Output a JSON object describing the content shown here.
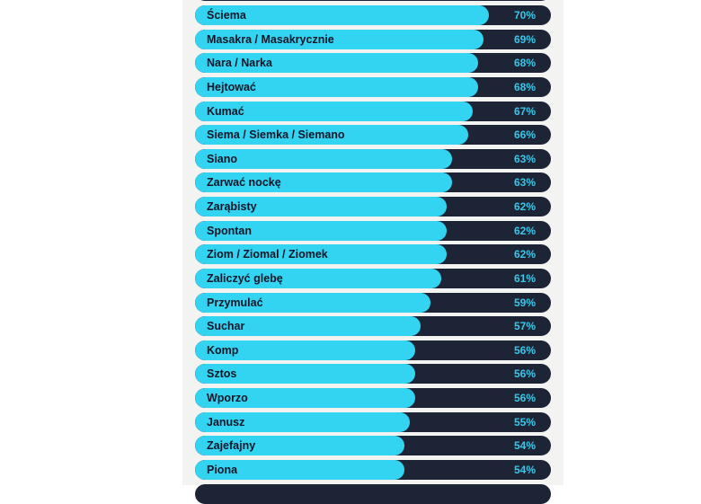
{
  "colors": {
    "bar_fill": "#33d4f2",
    "track": "#1c2436",
    "label_text": "#0e1526",
    "value_text": "#37c8ea",
    "panel_bg": "#f3f3f1"
  },
  "chart_data": {
    "type": "bar",
    "orientation": "horizontal",
    "title": "",
    "xlabel": "",
    "ylabel": "",
    "xlim": [
      0,
      100
    ],
    "unit": "%",
    "grid": false,
    "legend": "none",
    "categories": [
      "Ściema",
      "Masakra / Masakrycznie",
      "Nara / Narka",
      "Hejtować",
      "Kumać",
      "Siema / Siemka / Siemano",
      "Siano",
      "Zarwać nockę",
      "Zarąbisty",
      "Spontan",
      "Ziom / Ziomal / Ziomek",
      "Zaliczyć glebę",
      "Przymulać",
      "Suchar",
      "Komp",
      "Sztos",
      "Wporzo",
      "Janusz",
      "Zajefajny",
      "Piona"
    ],
    "values": [
      70,
      69,
      68,
      68,
      67,
      66,
      63,
      63,
      62,
      62,
      62,
      61,
      59,
      57,
      56,
      56,
      56,
      55,
      54,
      54
    ],
    "value_labels": [
      "70%",
      "69%",
      "68%",
      "68%",
      "67%",
      "66%",
      "63%",
      "63%",
      "62%",
      "62%",
      "62%",
      "61%",
      "59%",
      "57%",
      "56%",
      "56%",
      "56%",
      "55%",
      "54%",
      "54%"
    ]
  }
}
